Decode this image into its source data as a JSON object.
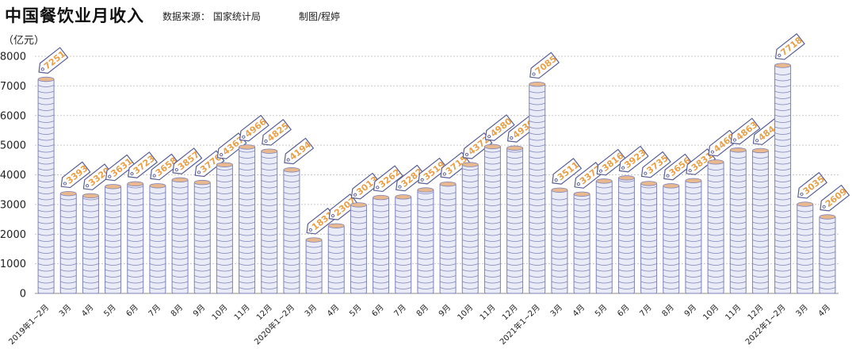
{
  "header": {
    "title": "中国餐饮业月收入",
    "source": "数据来源： 国家统计局",
    "author": "制图/程婷"
  },
  "chart_data": {
    "type": "bar",
    "title": "中国餐饮业月收入",
    "ylabel": "（亿元）",
    "ylim": [
      0,
      8000
    ],
    "yticks": [
      0,
      1000,
      2000,
      3000,
      4000,
      5000,
      6000,
      7000,
      8000
    ],
    "grid": true,
    "categories": [
      "2019年1~2月",
      "3月",
      "4月",
      "5月",
      "6月",
      "7月",
      "8月",
      "9月",
      "10月",
      "11月",
      "12月",
      "2020年1~2月",
      "3月",
      "4月",
      "5月",
      "6月",
      "7月",
      "8月",
      "9月",
      "10月",
      "11月",
      "12月",
      "2021年1~2月",
      "3月",
      "4月",
      "5月",
      "6月",
      "7月",
      "8月",
      "9月",
      "10月",
      "11月",
      "12月",
      "2022年1~2月",
      "3月",
      "4月"
    ],
    "values": [
      7251,
      3393,
      3320,
      3631,
      3723,
      3658,
      3857,
      3770,
      4367,
      4966,
      4825,
      4194,
      1831,
      2307,
      3013,
      3262,
      3282,
      3519,
      3715,
      4372,
      4980,
      4930,
      7085,
      3511,
      3377,
      3816,
      3923,
      3735,
      3656,
      3831,
      4460,
      4863,
      4844,
      7718,
      3035,
      2609
    ],
    "colors": {
      "coin_fill": "#e9ebf7",
      "coin_stroke": "#7f83b8",
      "coin_top": "#e8b98e",
      "tag_stroke": "#5a5f95",
      "label": "#e8a04a"
    }
  }
}
